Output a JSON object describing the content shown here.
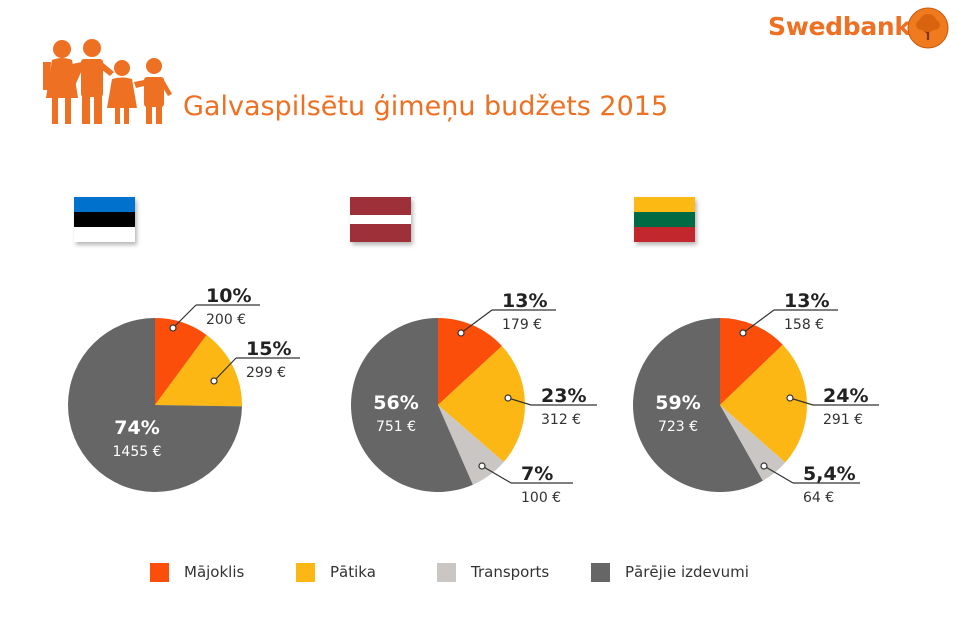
{
  "brand": {
    "name": "Swedbank"
  },
  "header": {
    "title": "Galvaspilsētu ģimeņu budžets 2015"
  },
  "colors": {
    "accent": "#ee7023",
    "majoklis": "#fb4e0b",
    "patika": "#fdb714",
    "transports": "#c9c6c3",
    "parejie": "#666666"
  },
  "flags": [
    {
      "country": "Estonia",
      "stripes": [
        "#0072ce",
        "#000000",
        "#ffffff"
      ]
    },
    {
      "country": "Latvia",
      "stripes": [
        "#9e3039",
        "#ffffff",
        "#9e3039"
      ]
    },
    {
      "country": "Lithuania",
      "stripes": [
        "#fdb913",
        "#006a44",
        "#c1272d"
      ]
    }
  ],
  "legend": [
    {
      "key": "majoklis",
      "label": "Mājoklis"
    },
    {
      "key": "patika",
      "label": "Pātika"
    },
    {
      "key": "transports",
      "label": "Transports"
    },
    {
      "key": "parejie",
      "label": "Pārējie izdevumi"
    }
  ],
  "chart_data": [
    {
      "type": "pie",
      "title": "",
      "slices": [
        {
          "key": "majoklis",
          "percent": 10,
          "pct_label": "10%",
          "amount": "200 €"
        },
        {
          "key": "patika",
          "percent": 15,
          "pct_label": "15%",
          "amount": "299 €"
        },
        {
          "key": "parejie",
          "percent": 74,
          "pct_label": "74%",
          "amount": "1455 €"
        }
      ]
    },
    {
      "type": "pie",
      "title": "",
      "slices": [
        {
          "key": "majoklis",
          "percent": 13,
          "pct_label": "13%",
          "amount": "179 €"
        },
        {
          "key": "patika",
          "percent": 23,
          "pct_label": "23%",
          "amount": "312 €"
        },
        {
          "key": "transports",
          "percent": 7,
          "pct_label": "7%",
          "amount": "100 €"
        },
        {
          "key": "parejie",
          "percent": 56,
          "pct_label": "56%",
          "amount": "751 €"
        }
      ]
    },
    {
      "type": "pie",
      "title": "",
      "slices": [
        {
          "key": "majoklis",
          "percent": 13,
          "pct_label": "13%",
          "amount": "158 €"
        },
        {
          "key": "patika",
          "percent": 24,
          "pct_label": "24%",
          "amount": "291 €"
        },
        {
          "key": "transports",
          "percent": 5.4,
          "pct_label": "5,4%",
          "amount": "64 €"
        },
        {
          "key": "parejie",
          "percent": 59,
          "pct_label": "59%",
          "amount": "723 €"
        }
      ]
    }
  ]
}
